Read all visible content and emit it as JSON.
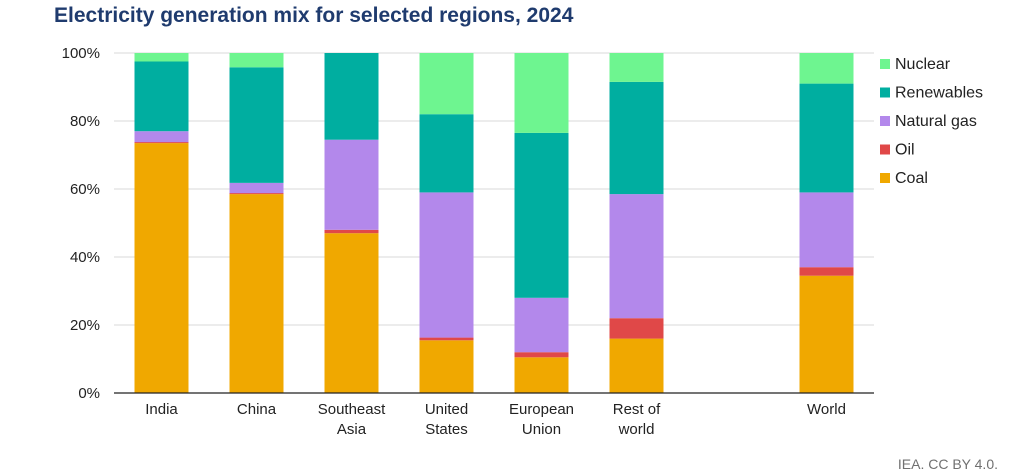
{
  "chart_data": {
    "type": "bar",
    "stacked": true,
    "title": "Electricity generation mix for selected regions, 2024",
    "xlabel": "",
    "ylabel": "",
    "ylim": [
      0,
      100
    ],
    "yticks": [
      "0%",
      "20%",
      "40%",
      "60%",
      "80%",
      "100%"
    ],
    "ytick_values": [
      0,
      20,
      40,
      60,
      80,
      100
    ],
    "grid": true,
    "legend_position": "right",
    "categories": [
      [
        "India"
      ],
      [
        "China"
      ],
      [
        "Southeast",
        "Asia"
      ],
      [
        "United",
        "States"
      ],
      [
        "European",
        "Union"
      ],
      [
        "Rest of",
        "world"
      ],
      [
        ""
      ],
      [
        "World"
      ]
    ],
    "series": [
      {
        "name": "Coal",
        "color": "#f0a800",
        "values": [
          73.5,
          58.5,
          47,
          15.5,
          10.5,
          16,
          null,
          34.5
        ]
      },
      {
        "name": "Oil",
        "color": "#e04848",
        "values": [
          0.3,
          0.3,
          1,
          0.8,
          1.5,
          6,
          null,
          2.5
        ]
      },
      {
        "name": "Natural gas",
        "color": "#b388eb",
        "values": [
          3.2,
          3,
          26.5,
          42.7,
          16,
          36.5,
          null,
          22
        ]
      },
      {
        "name": "Renewables",
        "color": "#00aea0",
        "values": [
          20.5,
          34,
          25.5,
          23,
          48.5,
          33,
          null,
          32
        ]
      },
      {
        "name": "Nuclear",
        "color": "#6ef590",
        "values": [
          2.5,
          4.2,
          0,
          18,
          23.5,
          8.5,
          null,
          9
        ]
      }
    ],
    "legend_order": [
      "Nuclear",
      "Renewables",
      "Natural gas",
      "Oil",
      "Coal"
    ]
  },
  "credit": "IEA. CC BY 4.0."
}
